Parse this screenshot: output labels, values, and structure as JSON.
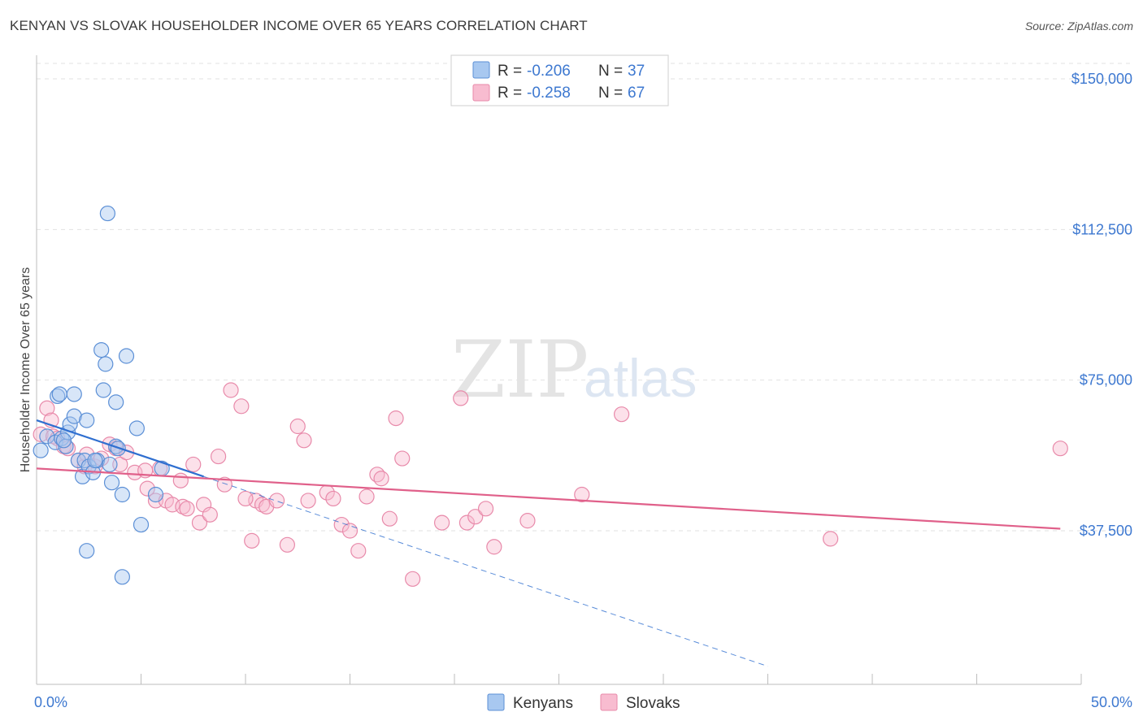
{
  "title": "KENYAN VS SLOVAK HOUSEHOLDER INCOME OVER 65 YEARS CORRELATION CHART",
  "source": "Source: ZipAtlas.com",
  "watermark": {
    "zip": "ZIP",
    "atlas": "atlas"
  },
  "colors": {
    "kenyans_fill": "#a8c8f0",
    "kenyans_stroke": "#5b8fd6",
    "kenyans_line": "#2f6fd0",
    "slovaks_fill": "#f8bcd0",
    "slovaks_stroke": "#e88aaa",
    "slovaks_line": "#e0608a",
    "tick_text": "#3d78d0",
    "grid": "#e2e2e2"
  },
  "legend": {
    "r_label": "R =",
    "n_label": "N =",
    "rows": [
      {
        "series": "Kenyans",
        "r": "-0.206",
        "n": "37"
      },
      {
        "series": "Slovaks",
        "r": "-0.258",
        "n": "67"
      }
    ]
  },
  "chart_data": {
    "type": "scatter",
    "title": "KENYAN VS SLOVAK HOUSEHOLDER INCOME OVER 65 YEARS CORRELATION CHART",
    "xlabel": "",
    "ylabel": "Householder Income Over 65 years",
    "xlim": [
      0,
      50
    ],
    "ylim": [
      0,
      155000
    ],
    "x_tick_labels": [
      "0.0%",
      "50.0%"
    ],
    "y_ticks": [
      37500,
      75000,
      112500,
      150000
    ],
    "y_tick_labels": [
      "$37,500",
      "$75,000",
      "$112,500",
      "$150,000"
    ],
    "grid": true,
    "legend_position": "top-center",
    "series": [
      {
        "name": "Kenyans",
        "r": -0.206,
        "n": 37,
        "trend": {
          "x": [
            0,
            8
          ],
          "y": [
            65000,
            51000
          ],
          "dashed_extension_to_x": 35
        },
        "points": [
          [
            0.2,
            57500
          ],
          [
            0.5,
            61000
          ],
          [
            0.9,
            59500
          ],
          [
            1.0,
            71000
          ],
          [
            1.1,
            71500
          ],
          [
            1.2,
            60500
          ],
          [
            1.4,
            58500
          ],
          [
            1.5,
            62000
          ],
          [
            1.6,
            64000
          ],
          [
            1.8,
            66000
          ],
          [
            1.8,
            71500
          ],
          [
            2.0,
            55000
          ],
          [
            2.2,
            51000
          ],
          [
            2.3,
            55000
          ],
          [
            2.4,
            65000
          ],
          [
            2.5,
            53500
          ],
          [
            2.7,
            52000
          ],
          [
            2.9,
            55000
          ],
          [
            3.1,
            82500
          ],
          [
            3.2,
            72500
          ],
          [
            3.3,
            79000
          ],
          [
            3.4,
            116500
          ],
          [
            3.5,
            54000
          ],
          [
            3.6,
            49500
          ],
          [
            3.8,
            69500
          ],
          [
            3.8,
            58500
          ],
          [
            4.1,
            46500
          ],
          [
            4.1,
            26000
          ],
          [
            4.3,
            81000
          ],
          [
            4.8,
            63000
          ],
          [
            5.0,
            39000
          ],
          [
            5.7,
            46500
          ],
          [
            6.0,
            53000
          ],
          [
            2.4,
            32500
          ],
          [
            1.3,
            60000
          ],
          [
            3.9,
            58000
          ],
          [
            2.8,
            55000
          ]
        ]
      },
      {
        "name": "Slovaks",
        "r": -0.258,
        "n": 67,
        "trend": {
          "x": [
            0,
            49
          ],
          "y": [
            53000,
            38000
          ]
        },
        "points": [
          [
            0.2,
            61500
          ],
          [
            0.5,
            68000
          ],
          [
            0.7,
            65000
          ],
          [
            0.8,
            61000
          ],
          [
            1.0,
            60500
          ],
          [
            1.3,
            58500
          ],
          [
            1.5,
            58000
          ],
          [
            2.0,
            55000
          ],
          [
            2.3,
            53500
          ],
          [
            2.4,
            56500
          ],
          [
            2.8,
            53500
          ],
          [
            3.1,
            55500
          ],
          [
            3.5,
            59000
          ],
          [
            3.8,
            58000
          ],
          [
            4.0,
            54000
          ],
          [
            4.3,
            57000
          ],
          [
            4.7,
            52000
          ],
          [
            5.2,
            52500
          ],
          [
            5.3,
            48000
          ],
          [
            5.7,
            45000
          ],
          [
            5.9,
            53000
          ],
          [
            6.2,
            45000
          ],
          [
            6.5,
            44000
          ],
          [
            6.9,
            50000
          ],
          [
            7.0,
            43500
          ],
          [
            7.2,
            43000
          ],
          [
            7.5,
            54000
          ],
          [
            7.8,
            39500
          ],
          [
            8.0,
            44000
          ],
          [
            8.3,
            41500
          ],
          [
            8.7,
            56000
          ],
          [
            9.0,
            49000
          ],
          [
            9.3,
            72500
          ],
          [
            9.8,
            68500
          ],
          [
            10.3,
            35000
          ],
          [
            10.5,
            45000
          ],
          [
            10.8,
            44000
          ],
          [
            11.0,
            43500
          ],
          [
            11.5,
            45000
          ],
          [
            12.0,
            34000
          ],
          [
            12.5,
            63500
          ],
          [
            12.8,
            60000
          ],
          [
            13.0,
            45000
          ],
          [
            13.9,
            47000
          ],
          [
            14.2,
            45500
          ],
          [
            14.6,
            39000
          ],
          [
            15.0,
            37500
          ],
          [
            15.4,
            32500
          ],
          [
            15.8,
            46000
          ],
          [
            16.3,
            51500
          ],
          [
            16.5,
            50500
          ],
          [
            16.9,
            40500
          ],
          [
            17.2,
            65500
          ],
          [
            17.5,
            55500
          ],
          [
            18.0,
            25500
          ],
          [
            19.4,
            39500
          ],
          [
            20.3,
            70500
          ],
          [
            20.6,
            39500
          ],
          [
            21.0,
            41000
          ],
          [
            21.5,
            43000
          ],
          [
            21.9,
            33500
          ],
          [
            23.5,
            40000
          ],
          [
            26.1,
            46500
          ],
          [
            28.0,
            66500
          ],
          [
            38.0,
            35500
          ],
          [
            49.0,
            58000
          ],
          [
            10.0,
            45500
          ]
        ]
      }
    ]
  },
  "bottom_legend": [
    "Kenyans",
    "Slovaks"
  ]
}
